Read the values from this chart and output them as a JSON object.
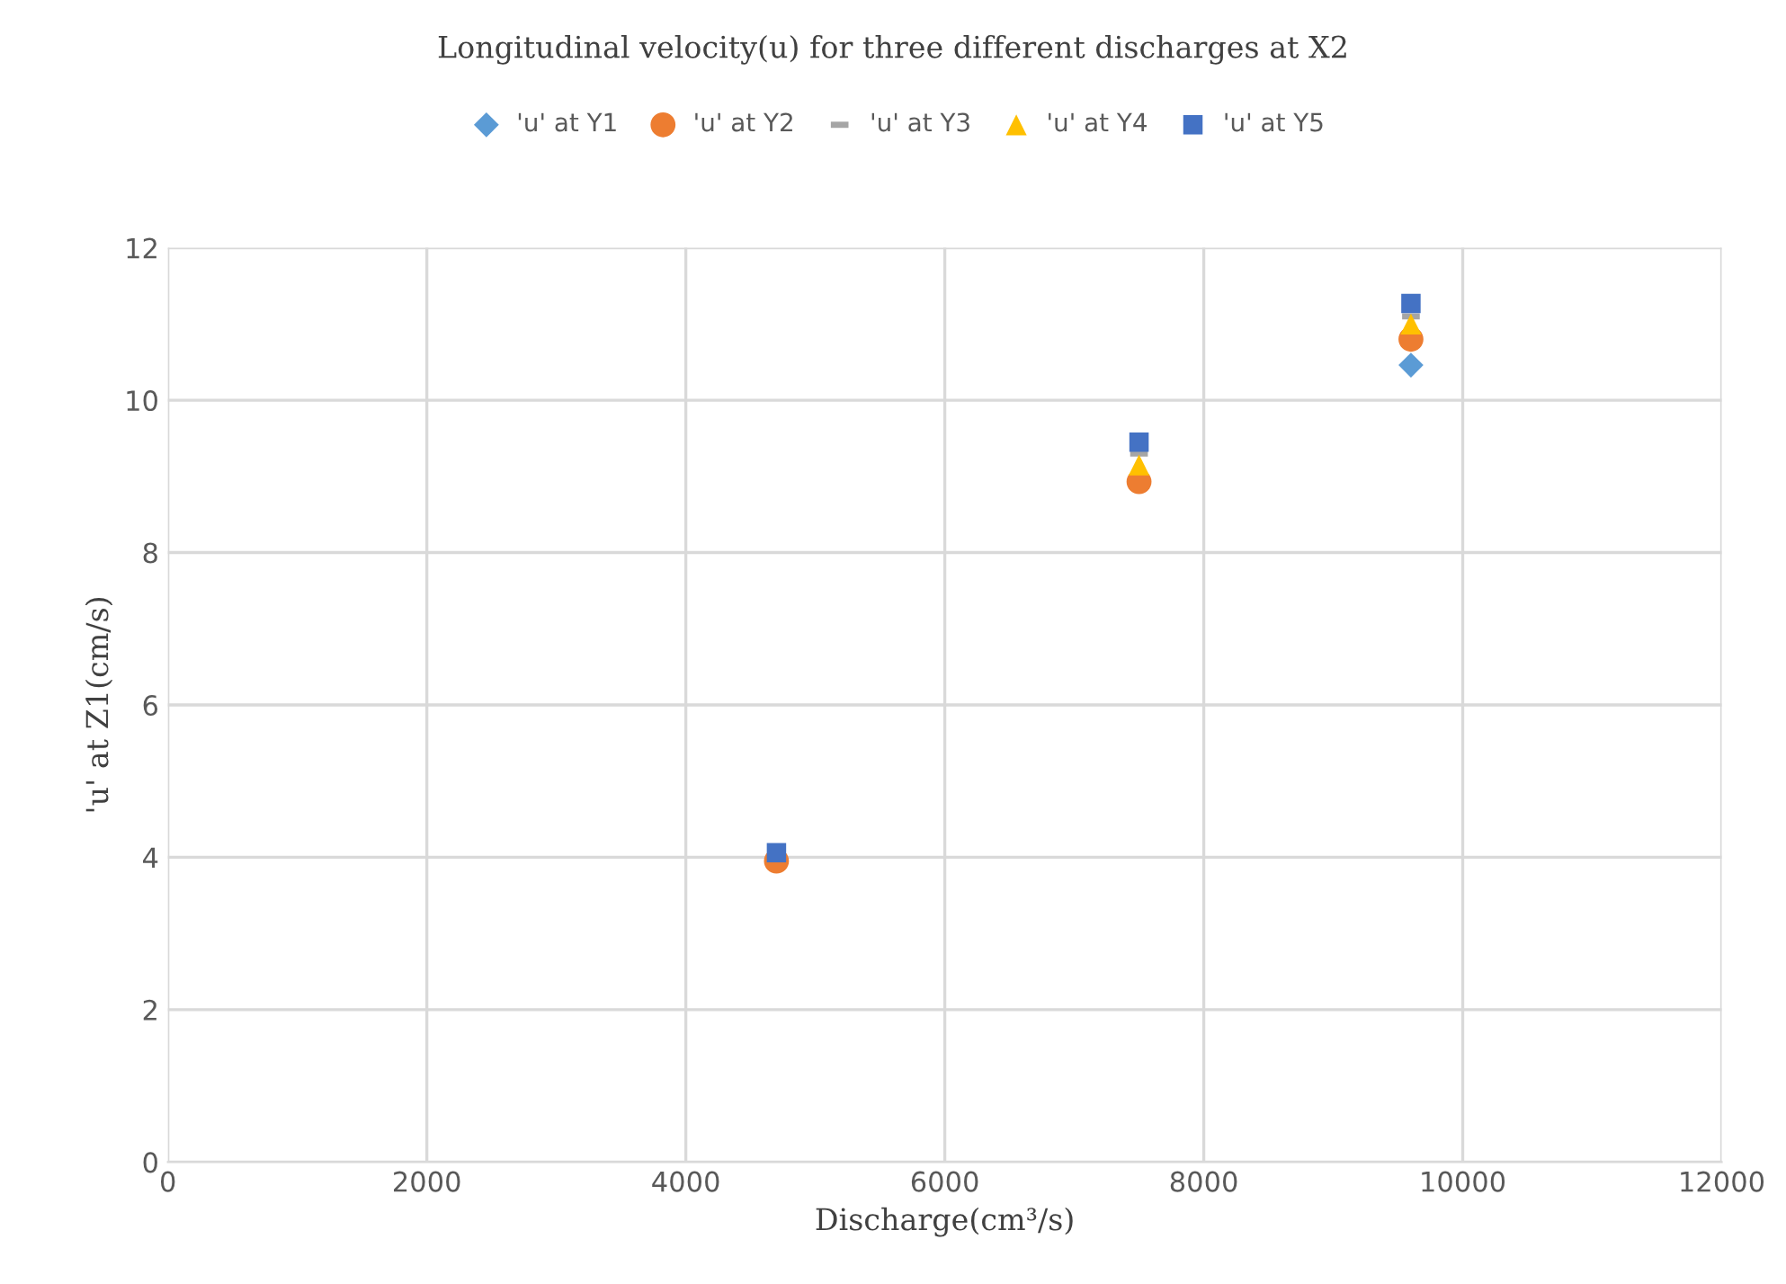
{
  "chart_data": {
    "type": "scatter",
    "title": "Longitudinal velocity(u) for three different discharges at X2",
    "xlabel": "Discharge(cm³/s)",
    "ylabel": "'u' at Z1(cm/s)",
    "x": [
      4700,
      7500,
      9600
    ],
    "series": [
      {
        "name": "'u' at Y1",
        "color": "#5b9bd5",
        "marker": "diamond",
        "values": [
          null,
          null,
          10.46
        ]
      },
      {
        "name": "'u' at Y2",
        "color": "#ed7d31",
        "marker": "circle",
        "values": [
          3.95,
          8.93,
          10.8
        ]
      },
      {
        "name": "'u' at Y3",
        "color": "#a5a5a5",
        "values": [
          null,
          9.3,
          11.1
        ]
      },
      {
        "name": "'u' at Y4",
        "color": "#ffc000",
        "marker": "triangle",
        "values": [
          null,
          9.15,
          11.0
        ]
      },
      {
        "name": "'u' at Y5",
        "color": "#4472c4",
        "marker": "square",
        "values": [
          4.06,
          9.45,
          11.27
        ]
      }
    ],
    "xlim": [
      0,
      12000
    ],
    "xticks": [
      0,
      2000,
      4000,
      6000,
      8000,
      10000,
      12000
    ],
    "ylim": [
      0,
      12
    ],
    "yticks": [
      0,
      2,
      4,
      6,
      8,
      10,
      12
    ],
    "grid": true,
    "legend": "top"
  }
}
